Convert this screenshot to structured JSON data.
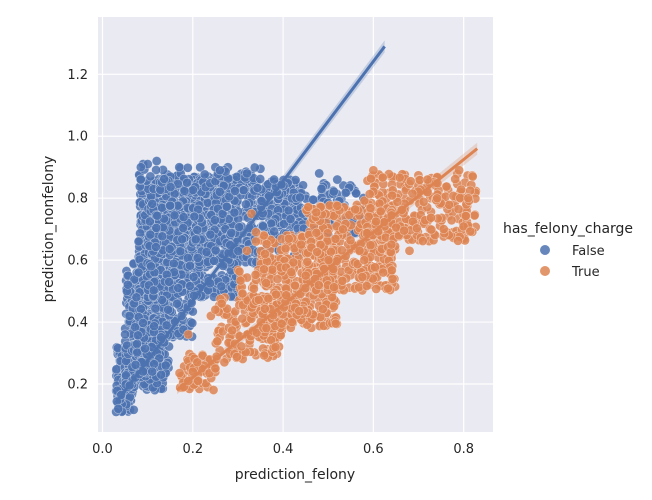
{
  "chart_data": {
    "type": "scatter",
    "title": "",
    "xlabel": "prediction_felony",
    "ylabel": "prediction_nonfelony",
    "xlim": [
      -0.01,
      0.865
    ],
    "ylim": [
      0.045,
      1.385
    ],
    "xticks": [
      0.0,
      0.2,
      0.4,
      0.6,
      0.8
    ],
    "xtick_labels": [
      "0.0",
      "0.2",
      "0.4",
      "0.6",
      "0.8"
    ],
    "yticks": [
      0.2,
      0.4,
      0.6,
      0.8,
      1.0,
      1.2
    ],
    "ytick_labels": [
      "0.2",
      "0.4",
      "0.6",
      "0.8",
      "1.0",
      "1.2"
    ],
    "grid": true,
    "legend": {
      "title": "has_felony_charge",
      "placement": "outside-right",
      "entries": [
        "False",
        "True"
      ]
    },
    "series": [
      {
        "name": "False",
        "color": "#4c72b0",
        "regression": {
          "x": [
            0.03,
            0.625
          ],
          "y": [
            0.14,
            1.29
          ]
        },
        "clusters": [
          {
            "x": [
              0.03,
              0.07
            ],
            "y": [
              0.11,
              0.32
            ],
            "n": 160
          },
          {
            "x": [
              0.05,
              0.14
            ],
            "y": [
              0.18,
              0.6
            ],
            "n": 320
          },
          {
            "x": [
              0.08,
              0.2
            ],
            "y": [
              0.35,
              0.85
            ],
            "n": 520
          },
          {
            "x": [
              0.1,
              0.3
            ],
            "y": [
              0.48,
              0.87
            ],
            "n": 520
          },
          {
            "x": [
              0.2,
              0.45
            ],
            "y": [
              0.58,
              0.86
            ],
            "n": 360
          },
          {
            "x": [
              0.35,
              0.58
            ],
            "y": [
              0.68,
              0.85
            ],
            "n": 170
          },
          {
            "x": [
              0.08,
              0.35
            ],
            "y": [
              0.82,
              0.9
            ],
            "n": 90
          },
          {
            "x": [
              0.07,
              0.15
            ],
            "y": [
              0.22,
              0.4
            ],
            "n": 80
          }
        ],
        "extra_points": [
          {
            "x": 0.09,
            "y": 0.91
          },
          {
            "x": 0.1,
            "y": 0.91
          },
          {
            "x": 0.12,
            "y": 0.92
          },
          {
            "x": 0.085,
            "y": 0.9
          },
          {
            "x": 0.17,
            "y": 0.9
          },
          {
            "x": 0.25,
            "y": 0.9
          },
          {
            "x": 0.26,
            "y": 0.89
          },
          {
            "x": 0.32,
            "y": 0.88
          },
          {
            "x": 0.38,
            "y": 0.86
          },
          {
            "x": 0.48,
            "y": 0.88
          },
          {
            "x": 0.52,
            "y": 0.86
          },
          {
            "x": 0.62,
            "y": 0.79
          },
          {
            "x": 0.08,
            "y": 0.66
          },
          {
            "x": 0.08,
            "y": 0.56
          },
          {
            "x": 0.09,
            "y": 0.24
          },
          {
            "x": 0.11,
            "y": 0.24
          },
          {
            "x": 0.13,
            "y": 0.23
          },
          {
            "x": 0.14,
            "y": 0.26
          },
          {
            "x": 0.05,
            "y": 0.36
          },
          {
            "x": 0.06,
            "y": 0.42
          },
          {
            "x": 0.07,
            "y": 0.46
          },
          {
            "x": 0.075,
            "y": 0.48
          },
          {
            "x": 0.03,
            "y": 0.11
          },
          {
            "x": 0.035,
            "y": 0.12
          }
        ]
      },
      {
        "name": "True",
        "color": "#dd8452",
        "regression": {
          "x": [
            0.165,
            0.83
          ],
          "y": [
            0.18,
            0.96
          ]
        },
        "clusters": [
          {
            "x": [
              0.17,
              0.25
            ],
            "y": [
              0.18,
              0.3
            ],
            "n": 60
          },
          {
            "x": [
              0.25,
              0.4
            ],
            "y": [
              0.28,
              0.48
            ],
            "n": 160
          },
          {
            "x": [
              0.35,
              0.52
            ],
            "y": [
              0.38,
              0.68
            ],
            "n": 320
          },
          {
            "x": [
              0.45,
              0.65
            ],
            "y": [
              0.5,
              0.78
            ],
            "n": 340
          },
          {
            "x": [
              0.58,
              0.83
            ],
            "y": [
              0.66,
              0.88
            ],
            "n": 260
          },
          {
            "x": [
              0.3,
              0.45
            ],
            "y": [
              0.42,
              0.6
            ],
            "n": 100
          }
        ],
        "extra_points": [
          {
            "x": 0.18,
            "y": 0.19
          },
          {
            "x": 0.19,
            "y": 0.21
          },
          {
            "x": 0.2,
            "y": 0.24
          },
          {
            "x": 0.21,
            "y": 0.27
          },
          {
            "x": 0.19,
            "y": 0.36
          },
          {
            "x": 0.25,
            "y": 0.25
          },
          {
            "x": 0.27,
            "y": 0.27
          },
          {
            "x": 0.24,
            "y": 0.42
          },
          {
            "x": 0.25,
            "y": 0.44
          },
          {
            "x": 0.33,
            "y": 0.75
          },
          {
            "x": 0.34,
            "y": 0.69
          },
          {
            "x": 0.36,
            "y": 0.62
          },
          {
            "x": 0.32,
            "y": 0.63
          },
          {
            "x": 0.34,
            "y": 0.66
          },
          {
            "x": 0.6,
            "y": 0.89
          },
          {
            "x": 0.72,
            "y": 0.86
          },
          {
            "x": 0.79,
            "y": 0.89
          },
          {
            "x": 0.82,
            "y": 0.87
          },
          {
            "x": 0.81,
            "y": 0.8
          },
          {
            "x": 0.68,
            "y": 0.63
          },
          {
            "x": 0.64,
            "y": 0.65
          },
          {
            "x": 0.42,
            "y": 0.4
          },
          {
            "x": 0.45,
            "y": 0.55
          },
          {
            "x": 0.58,
            "y": 0.6
          },
          {
            "x": 0.44,
            "y": 0.65
          }
        ]
      }
    ]
  }
}
